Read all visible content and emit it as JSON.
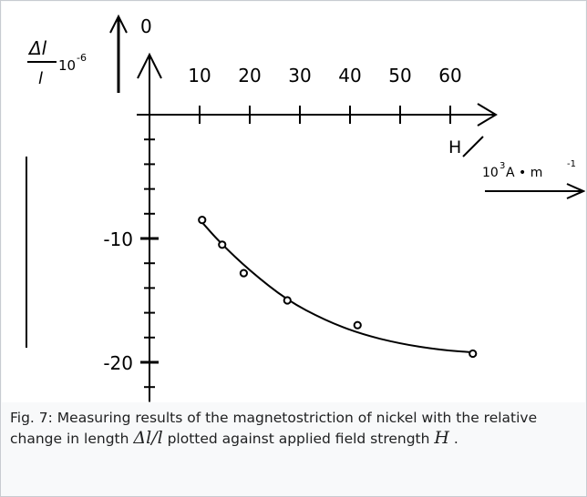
{
  "chart_data": {
    "type": "line",
    "y_axis_label": {
      "numerator": "Δl",
      "denominator": "l",
      "factor": "10",
      "exponent": "-6"
    },
    "y_arrow_label": "0",
    "x_axis_label": {
      "numerator": "H",
      "denominator_prefix": "10",
      "denominator_exp": "3",
      "denominator_unit": "A • m",
      "denominator_unit_exp": "-1"
    },
    "x_ticks": [
      10,
      20,
      30,
      40,
      50,
      60
    ],
    "y_ticks": [
      "-10",
      "-20"
    ],
    "xlim": [
      0,
      68
    ],
    "ylim": [
      -22,
      0
    ],
    "series": [
      {
        "points": [
          {
            "x": 10.5,
            "y": -8.5
          },
          {
            "x": 14.5,
            "y": -10.5
          },
          {
            "x": 18.8,
            "y": -12.8
          },
          {
            "x": 27.5,
            "y": -15.0
          },
          {
            "x": 41.5,
            "y": -17.0
          },
          {
            "x": 64.5,
            "y": -19.3
          }
        ],
        "fit": [
          {
            "x": 10.5,
            "y": -8.7
          },
          {
            "x": 14,
            "y": -10.3
          },
          {
            "x": 20,
            "y": -12.6
          },
          {
            "x": 27.5,
            "y": -15.0
          },
          {
            "x": 35,
            "y": -16.6
          },
          {
            "x": 42,
            "y": -17.7
          },
          {
            "x": 50,
            "y": -18.5
          },
          {
            "x": 58,
            "y": -19.0
          },
          {
            "x": 64.5,
            "y": -19.2
          }
        ]
      }
    ]
  },
  "caption": {
    "prefix": "Fig. 7: Measuring results of the magnetostriction of nickel with the relative change in length ",
    "math_dl": "Δl/l",
    "middle": " plotted against applied field strength ",
    "math_h": "H",
    "suffix": " ."
  }
}
